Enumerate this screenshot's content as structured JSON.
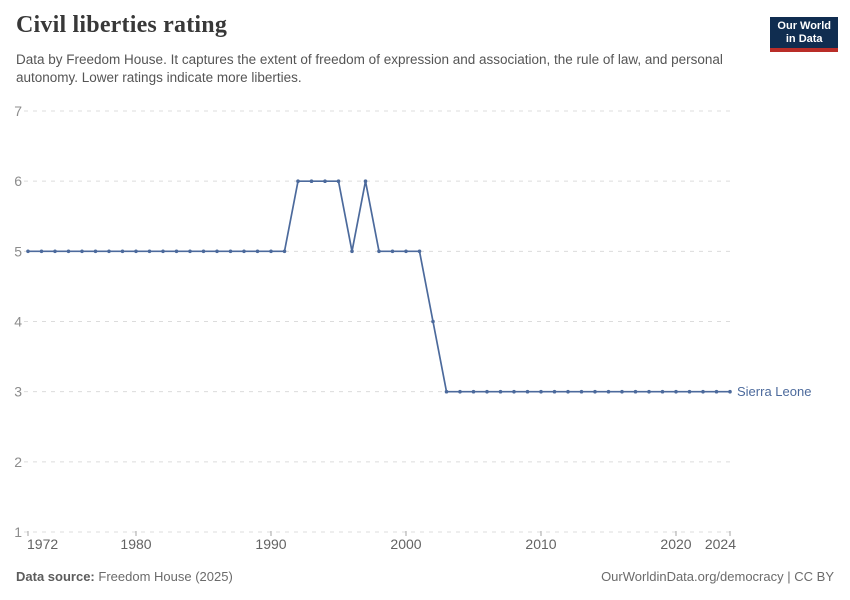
{
  "header": {
    "title": "Civil liberties rating",
    "subtitle": "Data by Freedom House. It captures the extent of freedom of expression and association, the rule of law, and personal autonomy. Lower ratings indicate more liberties."
  },
  "logo": {
    "line1": "Our World",
    "line2": "in Data",
    "bg_color": "#102d50",
    "accent_color": "#b92d28",
    "text_color": "#ffffff"
  },
  "chart_data": {
    "type": "line",
    "title": "Civil liberties rating",
    "xlabel": "",
    "ylabel": "",
    "xlim": [
      1972,
      2024
    ],
    "ylim": [
      1,
      7
    ],
    "x_ticks": [
      1972,
      1980,
      1990,
      2000,
      2010,
      2020,
      2024
    ],
    "y_ticks": [
      1,
      2,
      3,
      4,
      5,
      6,
      7
    ],
    "grid": "horizontal-dashed",
    "legend_position": "end-of-line",
    "colors": {
      "grid": "#dcdcdc",
      "tick_mark": "#a5a5a5",
      "y_tick_label": "#8c8c8c",
      "x_tick_label": "#636363"
    },
    "series": [
      {
        "name": "Sierra Leone",
        "color": "#4c6a9c",
        "x": [
          1972,
          1973,
          1974,
          1975,
          1976,
          1977,
          1978,
          1979,
          1980,
          1981,
          1982,
          1983,
          1984,
          1985,
          1986,
          1987,
          1988,
          1989,
          1990,
          1991,
          1992,
          1993,
          1994,
          1995,
          1996,
          1997,
          1998,
          1999,
          2000,
          2001,
          2002,
          2003,
          2004,
          2005,
          2006,
          2007,
          2008,
          2009,
          2010,
          2011,
          2012,
          2013,
          2014,
          2015,
          2016,
          2017,
          2018,
          2019,
          2020,
          2021,
          2022,
          2023,
          2024
        ],
        "values": [
          5,
          5,
          5,
          5,
          5,
          5,
          5,
          5,
          5,
          5,
          5,
          5,
          5,
          5,
          5,
          5,
          5,
          5,
          5,
          5,
          6,
          6,
          6,
          6,
          5,
          6,
          5,
          5,
          5,
          5,
          4,
          3,
          3,
          3,
          3,
          3,
          3,
          3,
          3,
          3,
          3,
          3,
          3,
          3,
          3,
          3,
          3,
          3,
          3,
          3,
          3,
          3,
          3
        ]
      }
    ]
  },
  "footer": {
    "source_label": "Data source:",
    "source_value": "Freedom House (2025)",
    "url": "OurWorldinData.org/democracy",
    "divider": "|",
    "license": "CC BY"
  }
}
